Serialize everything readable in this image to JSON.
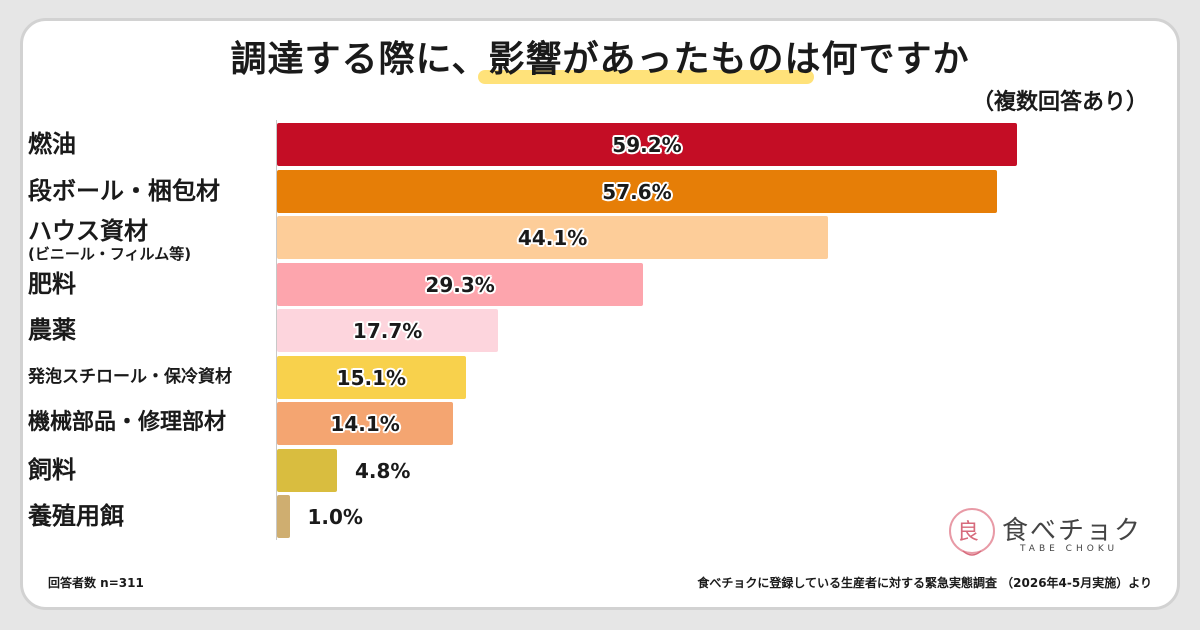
{
  "chart_data": {
    "type": "bar",
    "orientation": "horizontal",
    "title": "調達する際に、影響があったものは何ですか",
    "subtitle": "（複数回答あり）",
    "categories": [
      "燃油",
      "段ボール・梱包材",
      "ハウス資材",
      "肥料",
      "農薬",
      "発泡スチロール・保冷資材",
      "機械部品・修理部材",
      "飼料",
      "養殖用餌"
    ],
    "category_notes": [
      "",
      "",
      "(ビニール・フィルム等)",
      "",
      "",
      "",
      "",
      "",
      ""
    ],
    "values": [
      59.2,
      57.6,
      44.1,
      29.3,
      17.7,
      15.1,
      14.1,
      4.8,
      1.0
    ],
    "value_labels": [
      "59.2%",
      "57.6%",
      "44.1%",
      "29.3%",
      "17.7%",
      "15.1%",
      "14.1%",
      "4.8%",
      "1.0%"
    ],
    "colors": [
      "#c40d25",
      "#e67e07",
      "#fdcd99",
      "#fda5ad",
      "#fdd5dd",
      "#f8d14c",
      "#f4a571",
      "#d9bd3f",
      "#cfae70"
    ],
    "xlim": [
      0,
      60
    ],
    "grid": false,
    "legend": "none"
  },
  "footer": {
    "respondents": "回答者数 n=311",
    "source": "食べチョクに登録している生産者に対する緊急実態調査 （2026年4-5月実施）より"
  },
  "logo": {
    "name": "食べチョク",
    "sub": "TABE CHOKU"
  }
}
